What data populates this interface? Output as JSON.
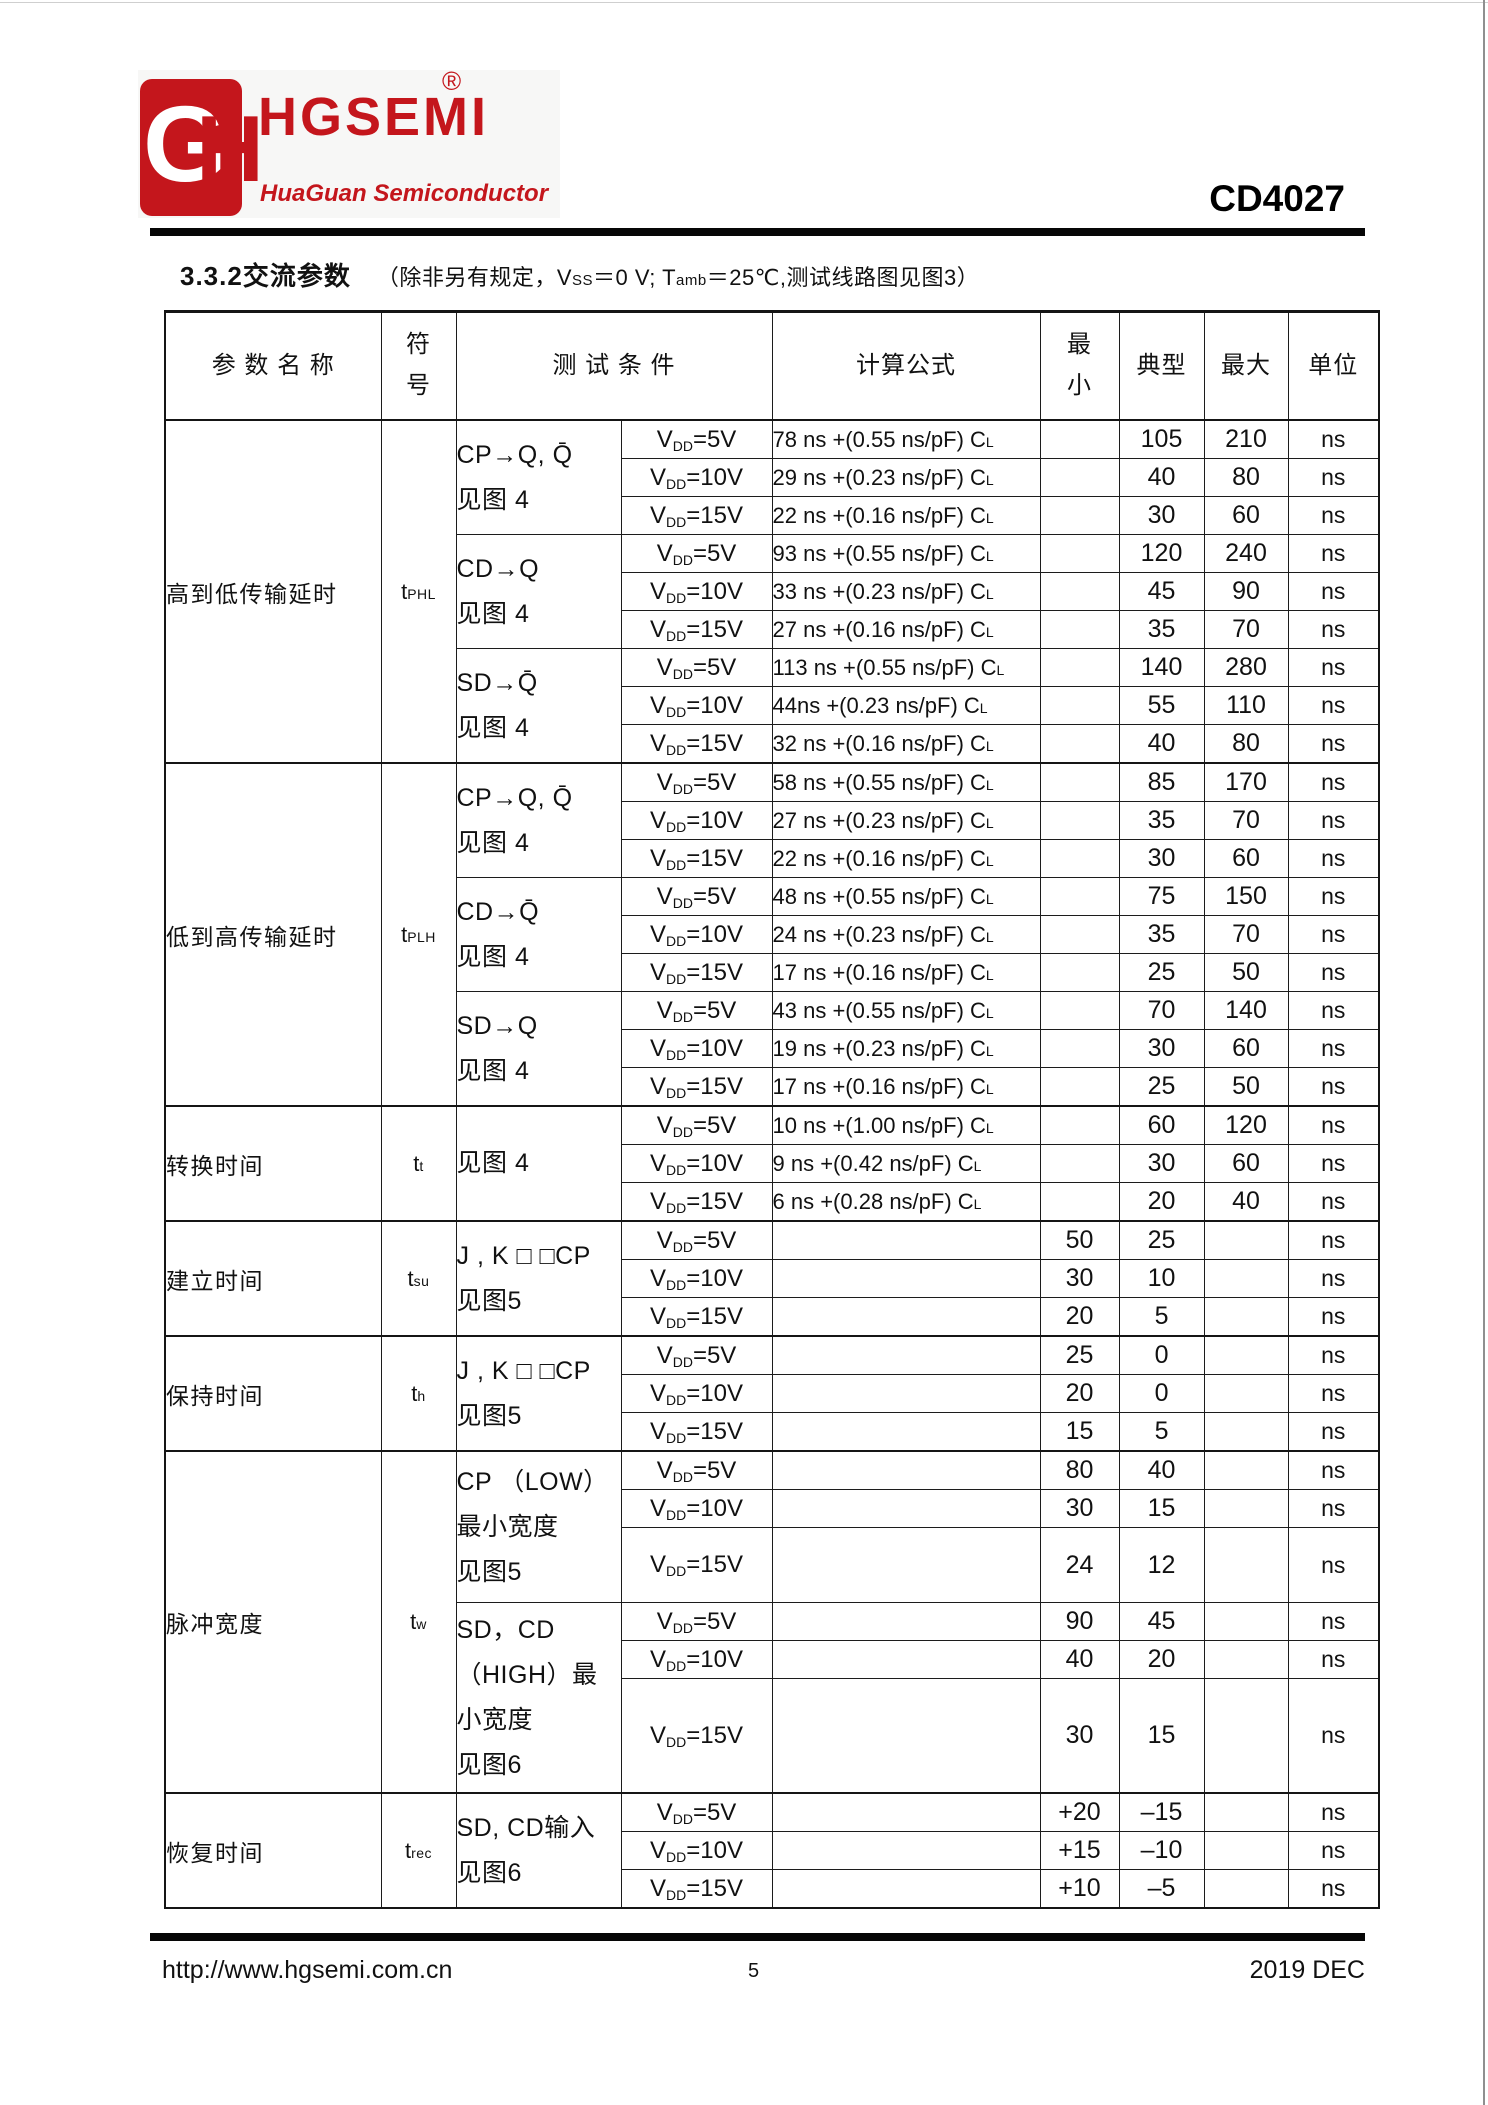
{
  "header": {
    "brand": "HGSEMI",
    "brand_reg": "®",
    "brand_sub": "HuaGuan Semiconductor",
    "logo_letter_g": "G",
    "logo_letter_h": "H",
    "brand_color": "#c4161c",
    "part_number": "CD4027"
  },
  "section": {
    "heading": "3.3.2交流参数",
    "note_parts": [
      {
        "t": "（除非另有规定，V"
      },
      {
        "t": "SS",
        "small": true
      },
      {
        "t": "＝0 V; T"
      },
      {
        "t": "amb",
        "small": true
      },
      {
        "t": "＝25℃,测试线路图见图3）"
      }
    ]
  },
  "table": {
    "col_headers": {
      "param": "参 数 名 称",
      "symbol": "符\n号",
      "conditions": "测 试 条 件",
      "formula": "计算公式",
      "min": "最\n小",
      "typ": "典型",
      "max": "最大",
      "unit": "单位"
    },
    "vdd": {
      "base": "V",
      "sub": "DD",
      "eq": "="
    },
    "groups": [
      {
        "param": "高到低传输延时",
        "symbol": {
          "base": "t",
          "sub": "PHL"
        },
        "blocks": [
          {
            "cond_lines": [
              "CP→Q,  Q̄",
              "见图 4"
            ],
            "rows": [
              {
                "v": "5V",
                "formula": "78 ns +(0.55 ns/pF) CL",
                "min": "",
                "typ": "105",
                "max": "210",
                "unit": "ns"
              },
              {
                "v": "10V",
                "formula": "29 ns +(0.23 ns/pF) CL",
                "min": "",
                "typ": "40",
                "max": "80",
                "unit": "ns"
              },
              {
                "v": "15V",
                "formula": "22 ns +(0.16 ns/pF) CL",
                "min": "",
                "typ": "30",
                "max": "60",
                "unit": "ns"
              }
            ]
          },
          {
            "cond_lines": [
              "CD→Q",
              "见图 4"
            ],
            "rows": [
              {
                "v": "5V",
                "formula": "93 ns +(0.55 ns/pF) CL",
                "min": "",
                "typ": "120",
                "max": "240",
                "unit": "ns"
              },
              {
                "v": "10V",
                "formula": "33 ns +(0.23 ns/pF) CL",
                "min": "",
                "typ": "45",
                "max": "90",
                "unit": "ns"
              },
              {
                "v": "15V",
                "formula": "27 ns +(0.16 ns/pF) CL",
                "min": "",
                "typ": "35",
                "max": "70",
                "unit": "ns"
              }
            ]
          },
          {
            "cond_lines": [
              "SD→Q̄",
              "见图 4"
            ],
            "rows": [
              {
                "v": "5V",
                "formula": "113 ns +(0.55 ns/pF) CL",
                "min": "",
                "typ": "140",
                "max": "280",
                "unit": "ns"
              },
              {
                "v": "10V",
                "formula": "44ns +(0.23 ns/pF) CL",
                "min": "",
                "typ": "55",
                "max": "110",
                "unit": "ns"
              },
              {
                "v": "15V",
                "formula": "32 ns +(0.16 ns/pF) CL",
                "min": "",
                "typ": "40",
                "max": "80",
                "unit": "ns"
              }
            ]
          }
        ]
      },
      {
        "param": "低到高传输延时",
        "symbol": {
          "base": "t",
          "sub": "PLH"
        },
        "blocks": [
          {
            "cond_lines": [
              "CP→Q,  Q̄",
              "见图 4"
            ],
            "rows": [
              {
                "v": "5V",
                "formula": "58 ns +(0.55 ns/pF) CL",
                "min": "",
                "typ": "85",
                "max": "170",
                "unit": "ns"
              },
              {
                "v": "10V",
                "formula": "27 ns +(0.23 ns/pF) CL",
                "min": "",
                "typ": "35",
                "max": "70",
                "unit": "ns"
              },
              {
                "v": "15V",
                "formula": "22 ns +(0.16 ns/pF) CL",
                "min": "",
                "typ": "30",
                "max": "60",
                "unit": "ns"
              }
            ]
          },
          {
            "cond_lines": [
              "CD→Q̄",
              "见图 4"
            ],
            "rows": [
              {
                "v": "5V",
                "formula": "48 ns +(0.55 ns/pF) CL",
                "min": "",
                "typ": "75",
                "max": "150",
                "unit": "ns"
              },
              {
                "v": "10V",
                "formula": "24 ns +(0.23 ns/pF) CL",
                "min": "",
                "typ": "35",
                "max": "70",
                "unit": "ns"
              },
              {
                "v": "15V",
                "formula": "17 ns +(0.16 ns/pF) CL",
                "min": "",
                "typ": "25",
                "max": "50",
                "unit": "ns"
              }
            ]
          },
          {
            "cond_lines": [
              "SD→Q",
              "见图 4"
            ],
            "rows": [
              {
                "v": "5V",
                "formula": "43 ns +(0.55 ns/pF) CL",
                "min": "",
                "typ": "70",
                "max": "140",
                "unit": "ns"
              },
              {
                "v": "10V",
                "formula": "19 ns +(0.23 ns/pF) CL",
                "min": "",
                "typ": "30",
                "max": "60",
                "unit": "ns"
              },
              {
                "v": "15V",
                "formula": "17 ns +(0.16 ns/pF) CL",
                "min": "",
                "typ": "25",
                "max": "50",
                "unit": "ns"
              }
            ]
          }
        ]
      },
      {
        "param": "转换时间",
        "symbol": {
          "base": "t",
          "sub": "t"
        },
        "blocks": [
          {
            "cond_lines": [
              "见图 4"
            ],
            "rows": [
              {
                "v": "5V",
                "formula": "10 ns +(1.00 ns/pF) CL",
                "min": "",
                "typ": "60",
                "max": "120",
                "unit": "ns"
              },
              {
                "v": "10V",
                "formula": "9 ns +(0.42 ns/pF) CL",
                "min": "",
                "typ": "30",
                "max": "60",
                "unit": "ns"
              },
              {
                "v": "15V",
                "formula": "6 ns +(0.28 ns/pF) CL",
                "min": "",
                "typ": "20",
                "max": "40",
                "unit": "ns"
              }
            ]
          }
        ]
      },
      {
        "param": "建立时间",
        "symbol": {
          "base": "t",
          "sub": "su"
        },
        "blocks": [
          {
            "cond_lines": [
              "J , K □ □CP",
              "见图5"
            ],
            "rows": [
              {
                "v": "5V",
                "formula": "",
                "min": "50",
                "typ": "25",
                "max": "",
                "unit": "ns"
              },
              {
                "v": "10V",
                "formula": "",
                "min": "30",
                "typ": "10",
                "max": "",
                "unit": "ns"
              },
              {
                "v": "15V",
                "formula": "",
                "min": "20",
                "typ": "5",
                "max": "",
                "unit": "ns"
              }
            ]
          }
        ]
      },
      {
        "param": "保持时间",
        "symbol": {
          "base": "t",
          "sub": "h"
        },
        "blocks": [
          {
            "cond_lines": [
              "J , K □ □CP",
              "见图5"
            ],
            "rows": [
              {
                "v": "5V",
                "formula": "",
                "min": "25",
                "typ": "0",
                "max": "",
                "unit": "ns"
              },
              {
                "v": "10V",
                "formula": "",
                "min": "20",
                "typ": "0",
                "max": "",
                "unit": "ns"
              },
              {
                "v": "15V",
                "formula": "",
                "min": "15",
                "typ": "5",
                "max": "",
                "unit": "ns"
              }
            ]
          }
        ]
      },
      {
        "param": "脉冲宽度",
        "symbol": {
          "base": "t",
          "sub": "w"
        },
        "blocks": [
          {
            "cond_lines": [
              "CP （LOW）",
              "最小宽度",
              "见图5"
            ],
            "rows": [
              {
                "v": "5V",
                "formula": "",
                "min": "80",
                "typ": "40",
                "max": "",
                "unit": "ns"
              },
              {
                "v": "10V",
                "formula": "",
                "min": "30",
                "typ": "15",
                "max": "",
                "unit": "ns"
              },
              {
                "v": "15V",
                "formula": "",
                "min": "24",
                "typ": "12",
                "max": "",
                "unit": "ns"
              }
            ]
          },
          {
            "cond_lines": [
              "SD，CD",
              "（HIGH）最",
              "小宽度",
              "见图6"
            ],
            "rows": [
              {
                "v": "5V",
                "formula": "",
                "min": "90",
                "typ": "45",
                "max": "",
                "unit": "ns"
              },
              {
                "v": "10V",
                "formula": "",
                "min": "40",
                "typ": "20",
                "max": "",
                "unit": "ns"
              },
              {
                "v": "15V",
                "formula": "",
                "min": "30",
                "typ": "15",
                "max": "",
                "unit": "ns"
              }
            ]
          }
        ]
      },
      {
        "param": "恢复时间",
        "symbol": {
          "base": "t",
          "sub": "rec"
        },
        "blocks": [
          {
            "cond_lines": [
              "SD, CD输入",
              "见图6"
            ],
            "rows": [
              {
                "v": "5V",
                "formula": "",
                "min": "+20",
                "typ": "–15",
                "max": "",
                "unit": "ns"
              },
              {
                "v": "10V",
                "formula": "",
                "min": "+15",
                "typ": "–10",
                "max": "",
                "unit": "ns"
              },
              {
                "v": "15V",
                "formula": "",
                "min": "+10",
                "typ": "–5",
                "max": "",
                "unit": "ns"
              }
            ]
          }
        ]
      }
    ]
  },
  "footer": {
    "url": "http://www.hgsemi.com.cn",
    "page": "5",
    "date": "2019 DEC"
  }
}
